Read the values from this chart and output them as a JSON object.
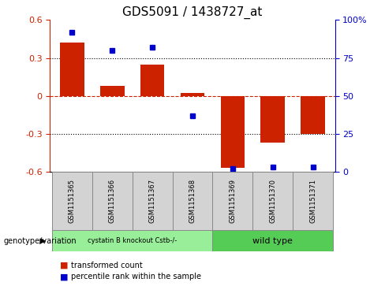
{
  "title": "GDS5091 / 1438727_at",
  "categories": [
    "GSM1151365",
    "GSM1151366",
    "GSM1151367",
    "GSM1151368",
    "GSM1151369",
    "GSM1151370",
    "GSM1151371"
  ],
  "bar_values": [
    0.42,
    0.08,
    0.25,
    0.02,
    -0.57,
    -0.37,
    -0.3
  ],
  "scatter_values_pct": [
    92,
    80,
    82,
    37,
    2,
    3,
    3
  ],
  "ylim": [
    -0.6,
    0.6
  ],
  "yticks_left": [
    -0.6,
    -0.3,
    0.0,
    0.3,
    0.6
  ],
  "yticks_right": [
    0,
    25,
    50,
    75,
    100
  ],
  "bar_color": "#cc2200",
  "scatter_color": "#0000cc",
  "group1_label": "cystatin B knockout Cstb-/-",
  "group2_label": "wild type",
  "group1_indices": [
    0,
    1,
    2,
    3
  ],
  "group2_indices": [
    4,
    5,
    6
  ],
  "group1_color": "#99ee99",
  "group2_color": "#55cc55",
  "genotype_label": "genotype/variation",
  "legend_bar_label": "transformed count",
  "legend_scatter_label": "percentile rank within the sample",
  "title_fontsize": 11,
  "tick_fontsize": 8,
  "label_fontsize": 6.5,
  "geno_fontsize": 7
}
